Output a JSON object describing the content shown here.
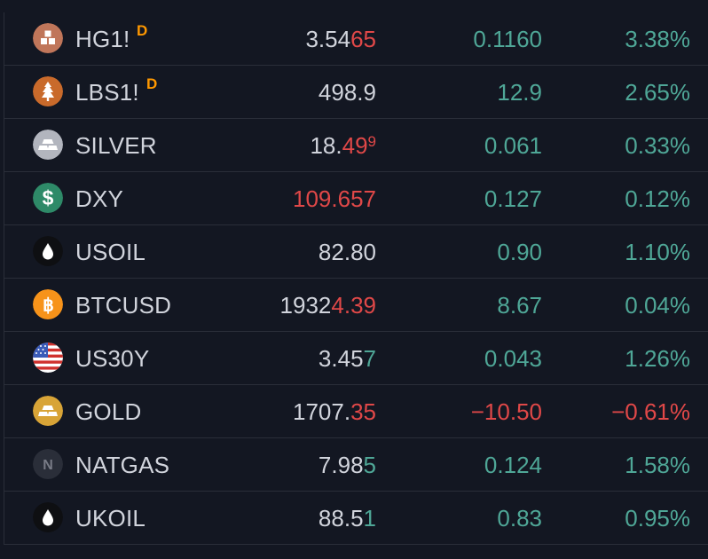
{
  "watchlist": {
    "rows": [
      {
        "symbol": "HG1!",
        "badge": "D",
        "icon": "copper-icon",
        "last_a": "3.54",
        "last_b": "65",
        "last_c": "",
        "last_b_dir": "neg",
        "change": "0.1160",
        "change_pct": "3.38%",
        "dir": "pos"
      },
      {
        "symbol": "LBS1!",
        "badge": "D",
        "icon": "lumber-tree-icon",
        "last_a": "498.9",
        "last_b": "",
        "last_c": "",
        "last_b_dir": "neu",
        "change": "12.9",
        "change_pct": "2.65%",
        "dir": "pos"
      },
      {
        "symbol": "SILVER",
        "badge": "",
        "icon": "silver-bar-icon",
        "last_a": "18.",
        "last_b": "49",
        "last_c": "9",
        "last_b_dir": "neg",
        "change": "0.061",
        "change_pct": "0.33%",
        "dir": "pos"
      },
      {
        "symbol": "DXY",
        "badge": "",
        "icon": "dollar-icon",
        "last_a": "",
        "last_b": "109.657",
        "last_c": "",
        "last_b_dir": "neg",
        "change": "0.127",
        "change_pct": "0.12%",
        "dir": "pos"
      },
      {
        "symbol": "USOIL",
        "badge": "",
        "icon": "oil-drop-icon",
        "last_a": "82.80",
        "last_b": "",
        "last_c": "",
        "last_b_dir": "neu",
        "change": "0.90",
        "change_pct": "1.10%",
        "dir": "pos"
      },
      {
        "symbol": "BTCUSD",
        "badge": "",
        "icon": "bitcoin-icon",
        "last_a": "1932",
        "last_b": "4.39",
        "last_c": "",
        "last_b_dir": "neg",
        "change": "8.67",
        "change_pct": "0.04%",
        "dir": "pos"
      },
      {
        "symbol": "US30Y",
        "badge": "",
        "icon": "us-flag-icon",
        "last_a": "3.45",
        "last_b": "7",
        "last_c": "",
        "last_b_dir": "pos",
        "change": "0.043",
        "change_pct": "1.26%",
        "dir": "pos"
      },
      {
        "symbol": "GOLD",
        "badge": "",
        "icon": "gold-bar-icon",
        "last_a": "1707.",
        "last_b": "35",
        "last_c": "",
        "last_b_dir": "neg",
        "change": "−10.50",
        "change_pct": "−0.61%",
        "dir": "neg"
      },
      {
        "symbol": "NATGAS",
        "badge": "",
        "icon": "natgas-n-icon",
        "last_a": "7.98",
        "last_b": "5",
        "last_c": "",
        "last_b_dir": "pos",
        "change": "0.124",
        "change_pct": "1.58%",
        "dir": "pos"
      },
      {
        "symbol": "UKOIL",
        "badge": "",
        "icon": "oil-drop-icon",
        "last_a": "88.5",
        "last_b": "1",
        "last_c": "",
        "last_b_dir": "pos",
        "change": "0.83",
        "change_pct": "0.95%",
        "dir": "pos"
      }
    ]
  },
  "colors": {
    "background": "#131722",
    "text": "#d1d4dc",
    "positive": "#4fa797",
    "negative": "#e04848",
    "badge": "#ff9800",
    "divider": "#2a2e39"
  }
}
